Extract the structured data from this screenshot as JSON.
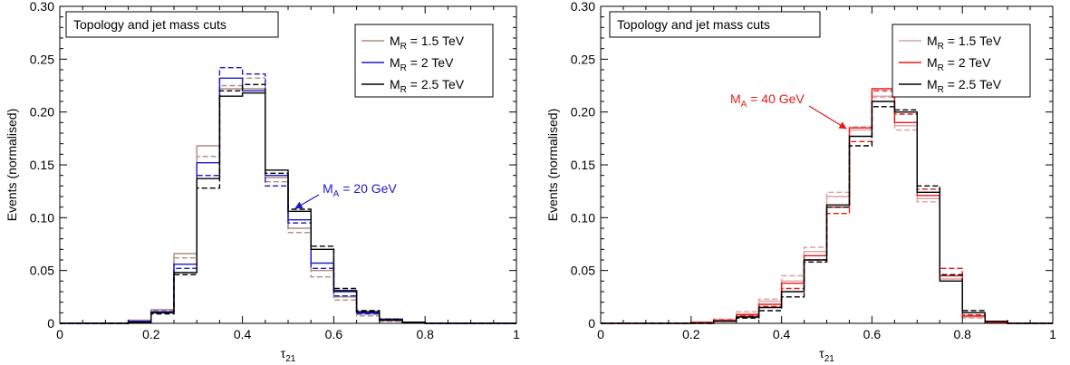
{
  "chart_data": [
    {
      "type": "line",
      "step": true,
      "xlabel": "τ",
      "xlabel_sub": "21",
      "ylabel": "Events (normalised)",
      "xlim": [
        0,
        1
      ],
      "ylim": [
        0,
        0.3
      ],
      "xticks": [
        "0",
        "0.2",
        "0.4",
        "0.6",
        "0.8",
        "1"
      ],
      "yticks": [
        "0",
        "0.05",
        "0.10",
        "0.15",
        "0.20",
        "0.25",
        "0.30"
      ],
      "topology_label": "Topology and jet mass cuts",
      "legend_position": "top-right",
      "legend": [
        {
          "prefix": "M",
          "sub": "R",
          "suffix": " = 1.5 TeV",
          "color": "#b08c80"
        },
        {
          "prefix": "M",
          "sub": "R",
          "suffix": " = 2 TeV",
          "color": "#1a1acc"
        },
        {
          "prefix": "M",
          "sub": "R",
          "suffix": " = 2.5 TeV",
          "color": "#000000"
        }
      ],
      "annotation": {
        "prefix": "M",
        "sub": "A",
        "suffix": " = 20 GeV",
        "color": "#1a1acc"
      },
      "bin_edges": [
        0,
        0.05,
        0.1,
        0.15,
        0.2,
        0.25,
        0.3,
        0.35,
        0.4,
        0.45,
        0.5,
        0.55,
        0.6,
        0.65,
        0.7,
        0.75,
        0.8,
        0.85,
        0.9,
        0.95,
        1.0
      ],
      "series": [
        {
          "color": "#b08c80",
          "dash": false,
          "values": [
            0,
            0,
            0,
            0.003,
            0.013,
            0.066,
            0.168,
            0.222,
            0.222,
            0.138,
            0.09,
            0.05,
            0.025,
            0.009,
            0.003,
            0.001,
            0,
            0,
            0,
            0
          ]
        },
        {
          "color": "#b08c80",
          "dash": true,
          "values": [
            0,
            0,
            0,
            0.002,
            0.012,
            0.062,
            0.158,
            0.225,
            0.232,
            0.134,
            0.086,
            0.044,
            0.022,
            0.007,
            0.002,
            0.001,
            0,
            0,
            0,
            0
          ]
        },
        {
          "color": "#1a1acc",
          "dash": false,
          "values": [
            0,
            0,
            0,
            0.002,
            0.011,
            0.056,
            0.152,
            0.232,
            0.22,
            0.14,
            0.098,
            0.057,
            0.03,
            0.01,
            0.004,
            0.001,
            0,
            0,
            0,
            0
          ]
        },
        {
          "color": "#1a1acc",
          "dash": true,
          "values": [
            0,
            0,
            0,
            0.002,
            0.011,
            0.052,
            0.14,
            0.242,
            0.236,
            0.13,
            0.095,
            0.052,
            0.026,
            0.009,
            0.003,
            0.001,
            0,
            0,
            0,
            0
          ]
        },
        {
          "color": "#000000",
          "dash": false,
          "values": [
            0,
            0,
            0,
            0.001,
            0.01,
            0.048,
            0.137,
            0.215,
            0.218,
            0.145,
            0.106,
            0.07,
            0.031,
            0.011,
            0.003,
            0.001,
            0,
            0,
            0,
            0
          ]
        },
        {
          "color": "#000000",
          "dash": true,
          "values": [
            0,
            0,
            0,
            0.001,
            0.009,
            0.046,
            0.128,
            0.22,
            0.226,
            0.142,
            0.108,
            0.073,
            0.033,
            0.012,
            0.004,
            0.001,
            0,
            0,
            0,
            0
          ]
        }
      ]
    },
    {
      "type": "line",
      "step": true,
      "xlabel": "τ",
      "xlabel_sub": "21",
      "ylabel": "Events (normalised)",
      "xlim": [
        0,
        1
      ],
      "ylim": [
        0,
        0.3
      ],
      "xticks": [
        "0",
        "0.2",
        "0.4",
        "0.6",
        "0.8",
        "1"
      ],
      "yticks": [
        "0",
        "0.05",
        "0.10",
        "0.15",
        "0.20",
        "0.25",
        "0.30"
      ],
      "topology_label": "Topology and jet mass cuts",
      "legend_position": "top-right",
      "legend": [
        {
          "prefix": "M",
          "sub": "R",
          "suffix": " = 1.5 TeV",
          "color": "#e0a0a0"
        },
        {
          "prefix": "M",
          "sub": "R",
          "suffix": " = 2 TeV",
          "color": "#e61a1a"
        },
        {
          "prefix": "M",
          "sub": "R",
          "suffix": " = 2.5 TeV",
          "color": "#000000"
        }
      ],
      "annotation": {
        "prefix": "M",
        "sub": "A",
        "suffix": " = 40 GeV",
        "color": "#e61a1a"
      },
      "bin_edges": [
        0,
        0.05,
        0.1,
        0.15,
        0.2,
        0.25,
        0.3,
        0.35,
        0.4,
        0.45,
        0.5,
        0.55,
        0.6,
        0.65,
        0.7,
        0.75,
        0.8,
        0.85,
        0.9,
        0.95,
        1.0
      ],
      "series": [
        {
          "color": "#e0a0a0",
          "dash": false,
          "values": [
            0,
            0,
            0,
            0,
            0.001,
            0.003,
            0.009,
            0.021,
            0.04,
            0.068,
            0.12,
            0.183,
            0.215,
            0.187,
            0.118,
            0.042,
            0.006,
            0.001,
            0,
            0
          ]
        },
        {
          "color": "#e0a0a0",
          "dash": true,
          "values": [
            0,
            0,
            0,
            0,
            0.001,
            0.004,
            0.011,
            0.023,
            0.045,
            0.072,
            0.124,
            0.186,
            0.214,
            0.183,
            0.115,
            0.04,
            0.005,
            0.001,
            0,
            0
          ]
        },
        {
          "color": "#e61a1a",
          "dash": false,
          "values": [
            0,
            0,
            0,
            0,
            0.001,
            0.003,
            0.008,
            0.018,
            0.038,
            0.064,
            0.11,
            0.185,
            0.222,
            0.19,
            0.121,
            0.045,
            0.007,
            0.001,
            0,
            0
          ]
        },
        {
          "color": "#e61a1a",
          "dash": true,
          "values": [
            0,
            0,
            0,
            0,
            0.001,
            0.003,
            0.007,
            0.016,
            0.033,
            0.06,
            0.104,
            0.172,
            0.22,
            0.198,
            0.127,
            0.052,
            0.008,
            0.001,
            0,
            0
          ]
        },
        {
          "color": "#000000",
          "dash": false,
          "values": [
            0,
            0,
            0,
            0,
            0,
            0.002,
            0.006,
            0.015,
            0.03,
            0.06,
            0.112,
            0.177,
            0.21,
            0.2,
            0.124,
            0.04,
            0.01,
            0.002,
            0,
            0
          ]
        },
        {
          "color": "#000000",
          "dash": true,
          "values": [
            0,
            0,
            0,
            0,
            0,
            0.002,
            0.005,
            0.012,
            0.025,
            0.058,
            0.11,
            0.168,
            0.205,
            0.202,
            0.13,
            0.046,
            0.012,
            0.002,
            0,
            0
          ]
        }
      ]
    }
  ]
}
